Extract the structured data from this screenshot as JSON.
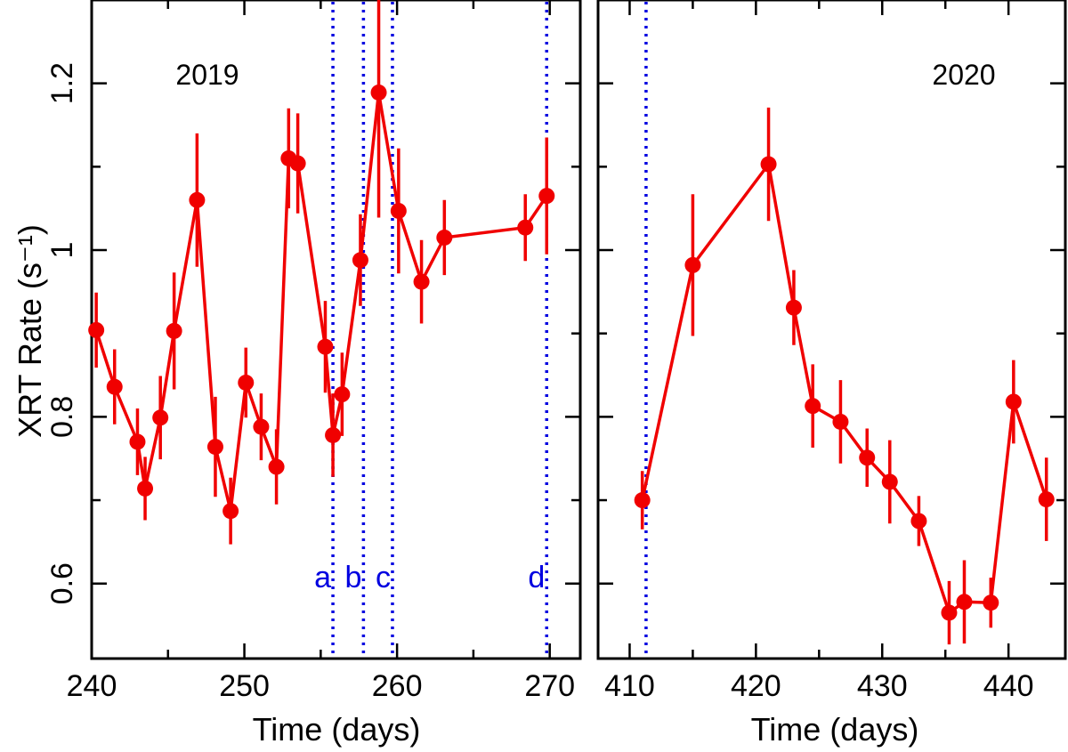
{
  "chart_data": {
    "type": "line",
    "ylabel": "XRT Rate (s⁻¹)",
    "ylim": [
      0.51,
      1.3
    ],
    "yticks_major": [
      0.6,
      0.8,
      1,
      1.2
    ],
    "yticks_minor": [
      0.7,
      0.9,
      1.1
    ],
    "ytick_labels": [
      "0.6",
      "0.8",
      "1",
      "1.2"
    ],
    "panels": [
      {
        "name": "left",
        "title": "2019",
        "xlabel": "Time (days)",
        "xlim": [
          240,
          272
        ],
        "xticks": [
          240,
          250,
          260,
          270
        ],
        "xtick_labels": [
          "240",
          "250",
          "260",
          "270"
        ],
        "xticks_minor": [
          245,
          255,
          265
        ],
        "markers": [
          {
            "label": "a",
            "x": 255.8
          },
          {
            "label": "b",
            "x": 257.8
          },
          {
            "label": "c",
            "x": 259.7
          },
          {
            "label": "d",
            "x": 269.8
          }
        ],
        "points": [
          {
            "x": 240.3,
            "y": 0.904,
            "err": 0.045
          },
          {
            "x": 241.5,
            "y": 0.836,
            "err": 0.045
          },
          {
            "x": 243.0,
            "y": 0.77,
            "err": 0.04
          },
          {
            "x": 243.5,
            "y": 0.714,
            "err": 0.038
          },
          {
            "x": 244.5,
            "y": 0.799,
            "err": 0.05
          },
          {
            "x": 245.4,
            "y": 0.903,
            "err": 0.07
          },
          {
            "x": 246.9,
            "y": 1.06,
            "err": 0.08
          },
          {
            "x": 248.1,
            "y": 0.764,
            "err": 0.06
          },
          {
            "x": 249.1,
            "y": 0.687,
            "err": 0.04
          },
          {
            "x": 250.1,
            "y": 0.841,
            "err": 0.042
          },
          {
            "x": 251.1,
            "y": 0.788,
            "err": 0.04
          },
          {
            "x": 252.1,
            "y": 0.74,
            "err": 0.045
          },
          {
            "x": 252.9,
            "y": 1.11,
            "err": 0.06
          },
          {
            "x": 253.5,
            "y": 1.104,
            "err": 0.06
          },
          {
            "x": 255.3,
            "y": 0.884,
            "err": 0.055
          },
          {
            "x": 255.8,
            "y": 0.778,
            "err": 0.05
          },
          {
            "x": 256.4,
            "y": 0.827,
            "err": 0.05
          },
          {
            "x": 257.6,
            "y": 0.988,
            "err": 0.055
          },
          {
            "x": 258.8,
            "y": 1.189,
            "err": 0.15
          },
          {
            "x": 260.1,
            "y": 1.047,
            "err": 0.075
          },
          {
            "x": 261.6,
            "y": 0.962,
            "err": 0.05
          },
          {
            "x": 263.1,
            "y": 1.015,
            "err": 0.045
          },
          {
            "x": 268.4,
            "y": 1.027,
            "err": 0.04
          },
          {
            "x": 269.8,
            "y": 1.065,
            "err": 0.07
          }
        ]
      },
      {
        "name": "right",
        "title": "2020",
        "xlabel": "Time (days)",
        "xlim": [
          407.5,
          444.5
        ],
        "xticks": [
          410,
          420,
          430,
          440
        ],
        "xtick_labels": [
          "410",
          "420",
          "430",
          "440"
        ],
        "xticks_minor": [
          415,
          425,
          435
        ],
        "markers": [
          {
            "label": "",
            "x": 411.3
          }
        ],
        "points": [
          {
            "x": 411.0,
            "y": 0.7,
            "err": 0.035
          },
          {
            "x": 415.0,
            "y": 0.982,
            "err": 0.085
          },
          {
            "x": 421.0,
            "y": 1.103,
            "err": 0.068
          },
          {
            "x": 423.0,
            "y": 0.931,
            "err": 0.045
          },
          {
            "x": 424.5,
            "y": 0.813,
            "err": 0.05
          },
          {
            "x": 426.7,
            "y": 0.794,
            "err": 0.05
          },
          {
            "x": 428.8,
            "y": 0.751,
            "err": 0.035
          },
          {
            "x": 430.6,
            "y": 0.722,
            "err": 0.05
          },
          {
            "x": 432.9,
            "y": 0.675,
            "err": 0.03
          },
          {
            "x": 435.3,
            "y": 0.565,
            "err": 0.038
          },
          {
            "x": 436.5,
            "y": 0.578,
            "err": 0.05
          },
          {
            "x": 438.6,
            "y": 0.577,
            "err": 0.03
          },
          {
            "x": 440.4,
            "y": 0.818,
            "err": 0.05
          },
          {
            "x": 443.0,
            "y": 0.701,
            "err": 0.05
          }
        ]
      }
    ],
    "colors": {
      "series": "#f00000",
      "markers": "#0000e0",
      "axes": "#000000"
    }
  }
}
